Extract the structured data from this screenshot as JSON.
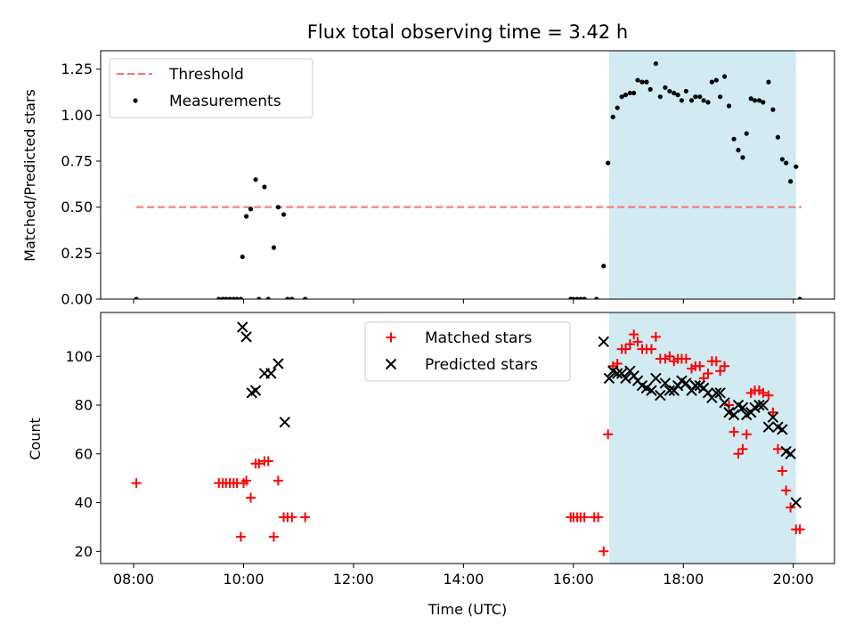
{
  "chart_data": [
    {
      "type": "scatter",
      "title": "Flux total observing time = 3.42 h",
      "xlabel": "",
      "ylabel": "Matched/Predicted stars",
      "xlim": [
        7.4,
        20.75
      ],
      "ylim": [
        0,
        1.35
      ],
      "yticks": [
        0,
        0.25,
        0.5,
        0.75,
        1.0,
        1.25
      ],
      "ytick_labels": [
        "0.00",
        "0.25",
        "0.50",
        "0.75",
        "1.00",
        "1.25"
      ],
      "xticks": [
        8,
        10,
        12,
        14,
        16,
        18,
        20
      ],
      "xtick_labels": [
        "",
        "",
        "",
        "",
        "",
        "",
        ""
      ],
      "shaded_span": {
        "x0": 16.65,
        "x1": 20.05,
        "color": "#add8e6"
      },
      "threshold": {
        "name": "Threshold",
        "y": 0.5,
        "x0": 8.05,
        "x1": 20.15,
        "color": "#ff7070"
      },
      "legend_position": "upper left",
      "series": [
        {
          "name": "Measurements",
          "marker": "dot",
          "color": "#000000",
          "points": [
            [
              8.05,
              0.0
            ],
            [
              9.55,
              0.0
            ],
            [
              9.62,
              0.0
            ],
            [
              9.68,
              0.0
            ],
            [
              9.75,
              0.0
            ],
            [
              9.82,
              0.0
            ],
            [
              9.88,
              0.0
            ],
            [
              9.95,
              0.0
            ],
            [
              9.98,
              0.23
            ],
            [
              10.05,
              0.45
            ],
            [
              10.13,
              0.49
            ],
            [
              10.22,
              0.65
            ],
            [
              10.28,
              0.0
            ],
            [
              10.38,
              0.61
            ],
            [
              10.45,
              0.0
            ],
            [
              10.55,
              0.28
            ],
            [
              10.63,
              0.5
            ],
            [
              10.73,
              0.46
            ],
            [
              10.8,
              0.0
            ],
            [
              10.88,
              0.0
            ],
            [
              11.12,
              0.0
            ],
            [
              15.95,
              0.0
            ],
            [
              16.0,
              0.0
            ],
            [
              16.07,
              0.0
            ],
            [
              16.13,
              0.0
            ],
            [
              16.2,
              0.0
            ],
            [
              16.42,
              0.0
            ],
            [
              16.55,
              0.18
            ],
            [
              16.63,
              0.74
            ],
            [
              16.72,
              0.99
            ],
            [
              16.8,
              1.04
            ],
            [
              16.88,
              1.1
            ],
            [
              16.95,
              1.11
            ],
            [
              17.03,
              1.12
            ],
            [
              17.1,
              1.12
            ],
            [
              17.17,
              1.19
            ],
            [
              17.25,
              1.18
            ],
            [
              17.33,
              1.18
            ],
            [
              17.4,
              1.14
            ],
            [
              17.5,
              1.28
            ],
            [
              17.58,
              1.1
            ],
            [
              17.67,
              1.15
            ],
            [
              17.75,
              1.13
            ],
            [
              17.83,
              1.12
            ],
            [
              17.9,
              1.11
            ],
            [
              17.97,
              1.08
            ],
            [
              18.05,
              1.13
            ],
            [
              18.15,
              1.08
            ],
            [
              18.22,
              1.1
            ],
            [
              18.3,
              1.1
            ],
            [
              18.37,
              1.08
            ],
            [
              18.45,
              1.07
            ],
            [
              18.52,
              1.18
            ],
            [
              18.6,
              1.19
            ],
            [
              18.67,
              1.1
            ],
            [
              18.75,
              1.21
            ],
            [
              18.83,
              1.05
            ],
            [
              18.92,
              0.87
            ],
            [
              19.0,
              0.81
            ],
            [
              19.08,
              0.77
            ],
            [
              19.15,
              0.9
            ],
            [
              19.23,
              1.09
            ],
            [
              19.3,
              1.08
            ],
            [
              19.38,
              1.08
            ],
            [
              19.45,
              1.07
            ],
            [
              19.55,
              1.18
            ],
            [
              19.63,
              1.03
            ],
            [
              19.72,
              0.88
            ],
            [
              19.8,
              0.76
            ],
            [
              19.87,
              0.74
            ],
            [
              19.95,
              0.64
            ],
            [
              20.05,
              0.72
            ],
            [
              20.12,
              0.0
            ]
          ]
        }
      ]
    },
    {
      "type": "scatter",
      "title": "",
      "xlabel": "Time (UTC)",
      "ylabel": "Count",
      "xlim": [
        7.4,
        20.75
      ],
      "ylim": [
        15,
        118
      ],
      "yticks": [
        20,
        40,
        60,
        80,
        100
      ],
      "ytick_labels": [
        "20",
        "40",
        "60",
        "80",
        "100"
      ],
      "xticks": [
        8,
        10,
        12,
        14,
        16,
        18,
        20
      ],
      "xtick_labels": [
        "08:00",
        "10:00",
        "12:00",
        "14:00",
        "16:00",
        "18:00",
        "20:00"
      ],
      "shaded_span": {
        "x0": 16.65,
        "x1": 20.05,
        "color": "#add8e6"
      },
      "legend_position": "upper center",
      "series": [
        {
          "name": "Matched stars",
          "marker": "plus",
          "color": "#ff0000",
          "points": [
            [
              8.05,
              48
            ],
            [
              9.55,
              48
            ],
            [
              9.62,
              48
            ],
            [
              9.68,
              48
            ],
            [
              9.75,
              48
            ],
            [
              9.82,
              48
            ],
            [
              9.88,
              48
            ],
            [
              9.95,
              26
            ],
            [
              10.0,
              48
            ],
            [
              10.05,
              49
            ],
            [
              10.13,
              42
            ],
            [
              10.22,
              56
            ],
            [
              10.28,
              56
            ],
            [
              10.38,
              57
            ],
            [
              10.45,
              57
            ],
            [
              10.55,
              26
            ],
            [
              10.63,
              49
            ],
            [
              10.73,
              34
            ],
            [
              10.8,
              34
            ],
            [
              10.88,
              34
            ],
            [
              11.12,
              34
            ],
            [
              15.95,
              34
            ],
            [
              16.0,
              34
            ],
            [
              16.07,
              34
            ],
            [
              16.13,
              34
            ],
            [
              16.2,
              34
            ],
            [
              16.38,
              34
            ],
            [
              16.45,
              34
            ],
            [
              16.55,
              20
            ],
            [
              16.63,
              68
            ],
            [
              16.72,
              96
            ],
            [
              16.8,
              97
            ],
            [
              16.88,
              103
            ],
            [
              16.95,
              103
            ],
            [
              17.03,
              105
            ],
            [
              17.1,
              109
            ],
            [
              17.17,
              106
            ],
            [
              17.25,
              103
            ],
            [
              17.33,
              103
            ],
            [
              17.42,
              103
            ],
            [
              17.5,
              108
            ],
            [
              17.58,
              99
            ],
            [
              17.67,
              99
            ],
            [
              17.75,
              100
            ],
            [
              17.83,
              98
            ],
            [
              17.9,
              99
            ],
            [
              17.97,
              99
            ],
            [
              18.05,
              99
            ],
            [
              18.15,
              95
            ],
            [
              18.22,
              96
            ],
            [
              18.3,
              96
            ],
            [
              18.37,
              91
            ],
            [
              18.45,
              93
            ],
            [
              18.52,
              98
            ],
            [
              18.6,
              98
            ],
            [
              18.67,
              94
            ],
            [
              18.75,
              96
            ],
            [
              18.83,
              80
            ],
            [
              18.92,
              69
            ],
            [
              19.0,
              60
            ],
            [
              19.08,
              62
            ],
            [
              19.15,
              68
            ],
            [
              19.23,
              85
            ],
            [
              19.3,
              86
            ],
            [
              19.38,
              86
            ],
            [
              19.45,
              85
            ],
            [
              19.55,
              84
            ],
            [
              19.63,
              77
            ],
            [
              19.72,
              62
            ],
            [
              19.8,
              53
            ],
            [
              19.87,
              45
            ],
            [
              19.95,
              38
            ],
            [
              20.05,
              29
            ],
            [
              20.12,
              29
            ]
          ]
        },
        {
          "name": "Predicted stars",
          "marker": "x",
          "color": "#000000",
          "points": [
            [
              9.98,
              112
            ],
            [
              10.05,
              108
            ],
            [
              10.15,
              85
            ],
            [
              10.22,
              86
            ],
            [
              10.38,
              93
            ],
            [
              10.5,
              93
            ],
            [
              10.63,
              97
            ],
            [
              10.75,
              73
            ],
            [
              16.55,
              106
            ],
            [
              16.65,
              91
            ],
            [
              16.72,
              94
            ],
            [
              16.8,
              93
            ],
            [
              16.88,
              93
            ],
            [
              16.95,
              91
            ],
            [
              17.03,
              94
            ],
            [
              17.1,
              92
            ],
            [
              17.17,
              90
            ],
            [
              17.25,
              88
            ],
            [
              17.33,
              87
            ],
            [
              17.42,
              86
            ],
            [
              17.5,
              91
            ],
            [
              17.58,
              84
            ],
            [
              17.67,
              89
            ],
            [
              17.75,
              86
            ],
            [
              17.83,
              86
            ],
            [
              17.9,
              88
            ],
            [
              17.97,
              90
            ],
            [
              18.05,
              89
            ],
            [
              18.15,
              86
            ],
            [
              18.22,
              88
            ],
            [
              18.3,
              88
            ],
            [
              18.37,
              87
            ],
            [
              18.45,
              85
            ],
            [
              18.52,
              83
            ],
            [
              18.6,
              85
            ],
            [
              18.67,
              85
            ],
            [
              18.75,
              81
            ],
            [
              18.83,
              77
            ],
            [
              18.92,
              76
            ],
            [
              19.0,
              80
            ],
            [
              19.08,
              79
            ],
            [
              19.15,
              76
            ],
            [
              19.23,
              77
            ],
            [
              19.3,
              79
            ],
            [
              19.38,
              80
            ],
            [
              19.45,
              80
            ],
            [
              19.55,
              71
            ],
            [
              19.63,
              75
            ],
            [
              19.72,
              71
            ],
            [
              19.8,
              70
            ],
            [
              19.87,
              61
            ],
            [
              19.95,
              60
            ],
            [
              20.05,
              40
            ]
          ]
        }
      ]
    }
  ]
}
